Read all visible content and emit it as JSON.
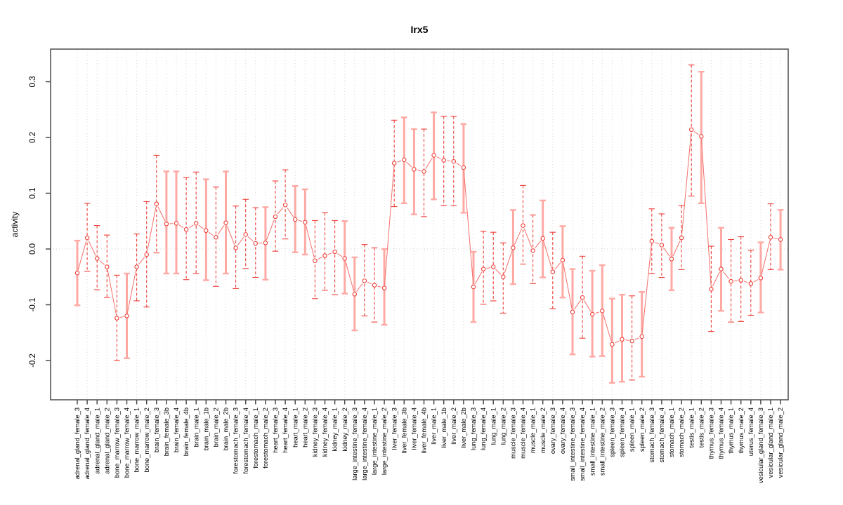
{
  "title": "Irx5",
  "colors": {
    "point_stroke": "#ee3f38",
    "bar_dashed": "#ee3f38",
    "bar_solid": "#ffa9a4",
    "series_line": "#f2706a",
    "gridline": "#d9d9d9",
    "zero_line": "#cdcdcd",
    "axis_box": "#4a4a4a",
    "text": "#000000"
  },
  "chart_data": {
    "type": "scatter",
    "subtype": "points-with-error-bars",
    "title": "Irx5",
    "xlabel": "",
    "ylabel": "activity",
    "ylim": [
      -0.27,
      0.36
    ],
    "yticks": [
      -0.2,
      -0.1,
      0.0,
      0.1,
      0.2,
      0.3
    ],
    "ytick_labels": [
      "-0.2",
      "-0.1",
      "0.0",
      "0.1",
      "0.2",
      "0.3"
    ],
    "grid": "dotted vertical gridline at every category; dotted horizontal reference line at 0",
    "legend": "none",
    "categories": [
      "adrenal_gland_female_3",
      "adrenal_gland_female_4",
      "adrenal_gland_male_1",
      "adrenal_gland_male_2",
      "bone_marrow_female_3",
      "bone_marrow_female_4",
      "bone_marrow_male_1",
      "bone_marrow_male_2",
      "brain_female_3",
      "brain_female_3b",
      "brain_female_4",
      "brain_female_4b",
      "brain_male_1",
      "brain_male_1b",
      "brain_male_2",
      "brain_male_2b",
      "forestomach_female_3",
      "forestomach_female_4",
      "forestomach_male_1",
      "forestomach_male_2",
      "heart_female_3",
      "heart_female_4",
      "heart_male_1",
      "heart_male_2",
      "kidney_female_3",
      "kidney_female_4",
      "kidney_male_1",
      "kidney_male_2",
      "large_intestine_female_3",
      "large_intestine_female_4",
      "large_intestine_male_1",
      "large_intestine_male_2",
      "liver_female_3",
      "liver_female_3b",
      "liver_female_4",
      "liver_female_4b",
      "liver_male_1",
      "liver_male_1b",
      "liver_male_2",
      "liver_male_2b",
      "lung_female_3",
      "lung_female_4",
      "lung_male_1",
      "lung_male_2",
      "muscle_female_3",
      "muscle_female_4",
      "muscle_male_1",
      "muscle_male_2",
      "ovary_female_3",
      "ovary_female_4",
      "small_intestine_female_3",
      "small_intestine_female_4",
      "small_intestine_male_1",
      "small_intestine_male_2",
      "spleen_female_3",
      "spleen_female_4",
      "spleen_male_1",
      "spleen_male_2",
      "stomach_female_3",
      "stomach_female_4",
      "stomach_male_1",
      "stomach_male_2",
      "testis_male_1",
      "testis_male_2",
      "thymus_female_3",
      "thymus_female_4",
      "thymus_male_1",
      "thymus_male_2",
      "uterus_female_4",
      "vesicular_gland_female_3",
      "vesicular_gland_male_1",
      "vesicular_gland_male_2"
    ],
    "series": [
      {
        "name": "activity",
        "values": [
          -0.043,
          0.02,
          -0.017,
          -0.032,
          -0.124,
          -0.12,
          -0.032,
          -0.01,
          0.081,
          0.045,
          0.046,
          0.035,
          0.046,
          0.033,
          0.021,
          0.047,
          0.002,
          0.026,
          0.01,
          0.011,
          0.058,
          0.079,
          0.053,
          0.048,
          -0.021,
          -0.012,
          -0.005,
          -0.017,
          -0.081,
          -0.057,
          -0.065,
          -0.07,
          0.154,
          0.16,
          0.143,
          0.139,
          0.168,
          0.159,
          0.157,
          0.146,
          -0.068,
          -0.036,
          -0.032,
          -0.05,
          0.002,
          0.042,
          -0.003,
          0.019,
          -0.041,
          -0.02,
          -0.113,
          -0.087,
          -0.117,
          -0.111,
          -0.171,
          -0.162,
          -0.165,
          -0.157,
          0.014,
          0.007,
          -0.018,
          0.02,
          0.214,
          0.202,
          -0.072,
          -0.036,
          -0.058,
          -0.056,
          -0.062,
          -0.052,
          0.021,
          0.017
        ]
      }
    ],
    "error_low": [
      -0.101,
      -0.04,
      -0.073,
      -0.087,
      -0.2,
      -0.196,
      -0.093,
      -0.104,
      -0.007,
      -0.044,
      -0.044,
      -0.055,
      -0.044,
      -0.056,
      -0.067,
      -0.044,
      -0.071,
      -0.035,
      -0.051,
      -0.055,
      -0.004,
      0.018,
      -0.006,
      -0.01,
      -0.089,
      -0.074,
      -0.082,
      -0.08,
      -0.146,
      -0.12,
      -0.131,
      -0.136,
      0.076,
      0.082,
      0.062,
      0.058,
      0.089,
      0.078,
      0.078,
      0.065,
      -0.131,
      -0.099,
      -0.093,
      -0.115,
      -0.063,
      -0.027,
      -0.062,
      -0.051,
      -0.107,
      -0.087,
      -0.189,
      -0.16,
      -0.193,
      -0.192,
      -0.24,
      -0.238,
      -0.235,
      -0.229,
      -0.044,
      -0.051,
      -0.074,
      -0.037,
      0.095,
      0.082,
      -0.148,
      -0.111,
      -0.131,
      -0.13,
      -0.119,
      -0.114,
      -0.037,
      -0.037
    ],
    "error_high": [
      0.015,
      0.082,
      0.042,
      0.025,
      -0.047,
      -0.044,
      0.027,
      0.085,
      0.168,
      0.139,
      0.139,
      0.128,
      0.138,
      0.125,
      0.111,
      0.139,
      0.077,
      0.089,
      0.074,
      0.075,
      0.122,
      0.142,
      0.113,
      0.107,
      0.051,
      0.065,
      0.051,
      0.05,
      -0.015,
      0.008,
      0.002,
      0.0,
      0.231,
      0.236,
      0.215,
      0.215,
      0.245,
      0.238,
      0.238,
      0.224,
      -0.005,
      0.032,
      0.03,
      0.011,
      0.07,
      0.114,
      0.061,
      0.087,
      0.03,
      0.041,
      -0.036,
      -0.013,
      -0.039,
      -0.029,
      -0.089,
      -0.082,
      -0.084,
      -0.077,
      0.072,
      0.063,
      0.038,
      0.078,
      0.33,
      0.318,
      0.005,
      0.038,
      0.017,
      0.022,
      -0.002,
      0.012,
      0.081,
      0.07
    ],
    "bar_styles": [
      "solid",
      "dashed",
      "dashed",
      "dashed",
      "dashed",
      "solid",
      "dashed",
      "dashed",
      "dashed",
      "solid",
      "solid",
      "dashed",
      "dashed",
      "solid",
      "dashed",
      "solid",
      "dashed",
      "dashed",
      "dashed",
      "solid",
      "dashed",
      "dashed",
      "solid",
      "solid",
      "dashed",
      "dashed",
      "dashed",
      "solid",
      "solid",
      "dashed",
      "dashed",
      "solid",
      "dashed",
      "solid",
      "solid",
      "dashed",
      "solid",
      "dashed",
      "dashed",
      "solid",
      "solid",
      "dashed",
      "dashed",
      "dashed",
      "solid",
      "dashed",
      "dashed",
      "solid",
      "dashed",
      "solid",
      "solid",
      "dashed",
      "solid",
      "solid",
      "solid",
      "solid",
      "dashed",
      "solid",
      "dashed",
      "dashed",
      "solid",
      "dashed",
      "dashed",
      "solid",
      "dashed",
      "solid",
      "dashed",
      "dashed",
      "dashed",
      "solid",
      "dashed",
      "solid"
    ]
  }
}
